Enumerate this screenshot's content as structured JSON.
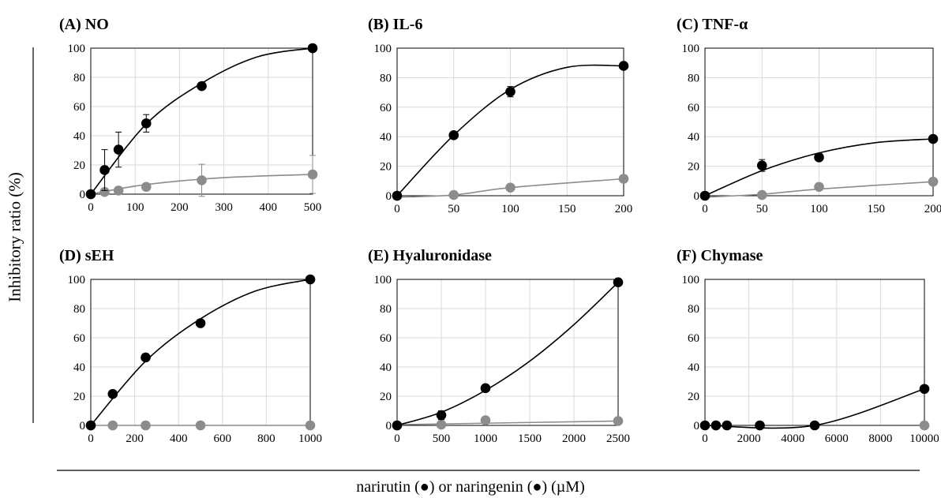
{
  "figure": {
    "y_title": "Inhibitory ratio (%)",
    "x_title": "narirutin (●) or naringenin (●) (µM)"
  },
  "colors": {
    "narirutin": "#8c8c8c",
    "naringenin": "#000000",
    "grid": "#d9d9d9",
    "frame": "#000000"
  },
  "chart_data": [
    {
      "type": "scatter",
      "title": "(A) NO",
      "xlim": [
        0,
        500
      ],
      "ylim": [
        0,
        100
      ],
      "xticks": [
        0,
        100,
        200,
        300,
        400,
        500
      ],
      "yticks": [
        0,
        20,
        40,
        60,
        80,
        100
      ],
      "series": [
        {
          "name": "narirutin",
          "x": [
            0,
            31.25,
            62.5,
            125,
            250,
            500
          ],
          "y": [
            0,
            1.5,
            2.5,
            5,
            9.5,
            13.5
          ],
          "err": [
            0,
            0,
            0,
            0,
            11,
            13
          ],
          "fit": [
            [
              0,
              0
            ],
            [
              100,
              5.5
            ],
            [
              200,
              9
            ],
            [
              300,
              11.3
            ],
            [
              400,
              12.6
            ],
            [
              500,
              13.5
            ]
          ]
        },
        {
          "name": "naringenin",
          "x": [
            0,
            31.25,
            62.5,
            125,
            250,
            500
          ],
          "y": [
            0,
            16.5,
            30.5,
            48.5,
            74,
            100
          ],
          "err": [
            0,
            14,
            12,
            6,
            0,
            0
          ],
          "fit": [
            [
              0,
              0
            ],
            [
              125,
              48
            ],
            [
              250,
              76
            ],
            [
              375,
              94
            ],
            [
              500,
              100
            ]
          ]
        }
      ]
    },
    {
      "type": "scatter",
      "title": "(B) IL-6",
      "xlim": [
        0,
        200
      ],
      "ylim": [
        0,
        100
      ],
      "xticks": [
        0,
        50,
        100,
        150,
        200
      ],
      "yticks": [
        0,
        20,
        40,
        60,
        80,
        100
      ],
      "series": [
        {
          "name": "narirutin",
          "x": [
            0,
            50,
            100,
            200
          ],
          "y": [
            0,
            0.5,
            5.5,
            11.5
          ],
          "err": [
            0,
            0,
            0,
            0
          ],
          "fit": [
            [
              0,
              -1
            ],
            [
              50,
              0.5
            ],
            [
              100,
              5.5
            ],
            [
              200,
              11.5
            ]
          ]
        },
        {
          "name": "naringenin",
          "x": [
            0,
            50,
            100,
            200
          ],
          "y": [
            0,
            41,
            70.5,
            88
          ],
          "err": [
            0,
            0,
            3.5,
            0
          ],
          "fit": [
            [
              0,
              0
            ],
            [
              50,
              41
            ],
            [
              100,
              72
            ],
            [
              150,
              87
            ],
            [
              200,
              88
            ]
          ]
        }
      ]
    },
    {
      "type": "scatter",
      "title": "(C) TNF-α",
      "xlim": [
        0,
        200
      ],
      "ylim": [
        0,
        100
      ],
      "xticks": [
        0,
        50,
        100,
        150,
        200
      ],
      "yticks": [
        0,
        20,
        40,
        60,
        80,
        100
      ],
      "series": [
        {
          "name": "narirutin",
          "x": [
            0,
            50,
            100,
            200
          ],
          "y": [
            0,
            0.5,
            6,
            9.5
          ],
          "err": [
            0,
            0,
            0,
            0
          ],
          "fit": [
            [
              0,
              -1
            ],
            [
              50,
              1
            ],
            [
              100,
              4.5
            ],
            [
              200,
              9.5
            ]
          ]
        },
        {
          "name": "naringenin",
          "x": [
            0,
            50,
            100,
            200
          ],
          "y": [
            0,
            20.5,
            26,
            38.5
          ],
          "err": [
            0,
            4,
            0,
            0
          ],
          "fit": [
            [
              0,
              0
            ],
            [
              50,
              17
            ],
            [
              100,
              29
            ],
            [
              150,
              36
            ],
            [
              200,
              38.5
            ]
          ]
        }
      ]
    },
    {
      "type": "scatter",
      "title": "(D) sEH",
      "xlim": [
        0,
        1000
      ],
      "ylim": [
        0,
        100
      ],
      "xticks": [
        0,
        200,
        400,
        600,
        800,
        1000
      ],
      "yticks": [
        0,
        20,
        40,
        60,
        80,
        100
      ],
      "series": [
        {
          "name": "narirutin",
          "x": [
            0,
            100,
            250,
            500,
            1000
          ],
          "y": [
            0,
            0,
            0,
            0,
            0
          ],
          "err": [
            0,
            0,
            0,
            0,
            0
          ],
          "fit": [
            [
              0,
              0
            ],
            [
              1000,
              0
            ]
          ]
        },
        {
          "name": "naringenin",
          "x": [
            0,
            100,
            250,
            500,
            1000
          ],
          "y": [
            0,
            21.5,
            46.5,
            70,
            100
          ],
          "err": [
            0,
            0,
            0,
            0,
            0
          ],
          "fit": [
            [
              0,
              0
            ],
            [
              250,
              44
            ],
            [
              500,
              73
            ],
            [
              750,
              92
            ],
            [
              1000,
              100
            ]
          ]
        }
      ]
    },
    {
      "type": "scatter",
      "title": "(E) Hyaluronidase",
      "xlim": [
        0,
        2500
      ],
      "ylim": [
        0,
        100
      ],
      "xticks": [
        0,
        500,
        1000,
        1500,
        2000,
        2500
      ],
      "yticks": [
        0,
        20,
        40,
        60,
        80,
        100
      ],
      "series": [
        {
          "name": "narirutin",
          "x": [
            0,
            500,
            1000,
            2500
          ],
          "y": [
            0,
            0.5,
            3.5,
            3
          ],
          "err": [
            0,
            0,
            0,
            0
          ],
          "fit": [
            [
              0,
              0.5
            ],
            [
              2500,
              3
            ]
          ]
        },
        {
          "name": "naringenin",
          "x": [
            0,
            500,
            1000,
            2500
          ],
          "y": [
            0,
            7,
            25.5,
            98
          ],
          "err": [
            0,
            3,
            0,
            0
          ],
          "fit": [
            [
              0,
              0
            ],
            [
              500,
              9
            ],
            [
              1000,
              24
            ],
            [
              1500,
              44
            ],
            [
              2000,
              69
            ],
            [
              2500,
              98
            ]
          ]
        }
      ]
    },
    {
      "type": "scatter",
      "title": "(F) Chymase",
      "xlim": [
        0,
        10000
      ],
      "ylim": [
        0,
        100
      ],
      "xticks": [
        0,
        2000,
        4000,
        6000,
        8000,
        10000
      ],
      "yticks": [
        0,
        20,
        40,
        60,
        80,
        100
      ],
      "series": [
        {
          "name": "narirutin",
          "x": [
            10000
          ],
          "y": [
            0
          ],
          "err": [
            0
          ],
          "fit": []
        },
        {
          "name": "naringenin",
          "x": [
            0,
            500,
            1000,
            2500,
            5000,
            10000
          ],
          "y": [
            0,
            0,
            0,
            0,
            0,
            25
          ],
          "err": [
            0,
            0,
            0,
            0,
            0,
            0
          ],
          "fit": [
            [
              0,
              0
            ],
            [
              5000,
              0
            ],
            [
              10000,
              25
            ]
          ]
        }
      ]
    }
  ]
}
